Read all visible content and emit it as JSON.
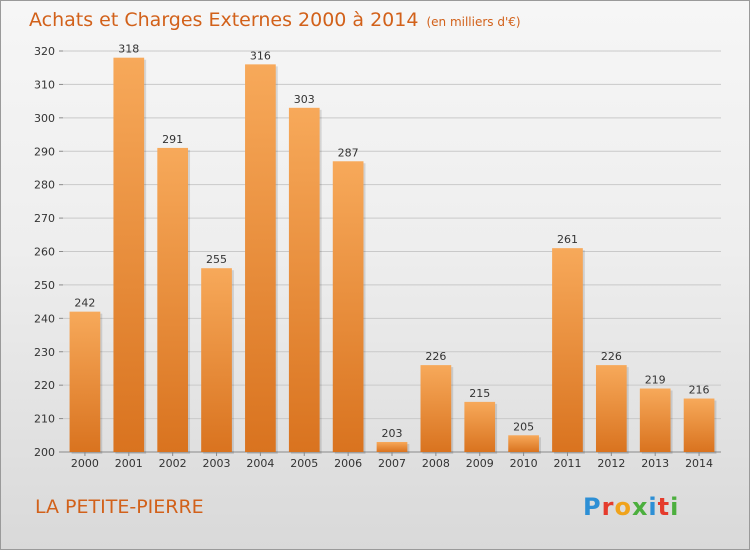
{
  "header": {
    "title": "Achats et Charges Externes 2000 à 2014",
    "subtitle": "(en milliers d'€)"
  },
  "footer": {
    "commune": "LA PETITE-PIERRE",
    "logo": "Proxiti"
  },
  "colors": {
    "accent": "#d2611a",
    "bar_light": "#f7a95a",
    "bar_dark": "#d9731f"
  },
  "chart_data": {
    "type": "bar",
    "title": "Achats et Charges Externes 2000 à 2014",
    "subtitle": "(en milliers d'€)",
    "categories": [
      "2000",
      "2001",
      "2002",
      "2003",
      "2004",
      "2005",
      "2006",
      "2007",
      "2008",
      "2009",
      "2010",
      "2011",
      "2012",
      "2013",
      "2014"
    ],
    "values": [
      242,
      318,
      291,
      255,
      316,
      303,
      287,
      203,
      226,
      215,
      205,
      261,
      226,
      219,
      216
    ],
    "ylim": [
      200,
      320
    ],
    "yticks": [
      200,
      210,
      220,
      230,
      240,
      250,
      260,
      270,
      280,
      290,
      300,
      310,
      320
    ],
    "grid": true,
    "data_labels": true
  }
}
